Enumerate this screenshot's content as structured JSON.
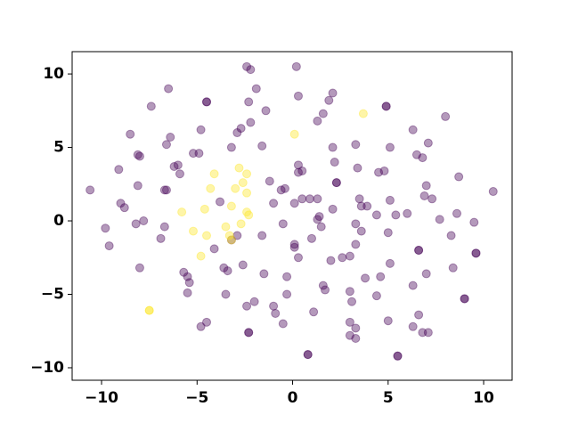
{
  "chart_data": {
    "type": "scatter",
    "xlim": [
      -11.54,
      11.49
    ],
    "ylim": [
      -10.85,
      11.52
    ],
    "xticks": [
      {
        "value": -10,
        "label": "−10"
      },
      {
        "value": -5,
        "label": "−5"
      },
      0,
      5,
      10
    ],
    "yticks": [
      {
        "value": -10,
        "label": "−10"
      },
      {
        "value": -5,
        "label": "−5"
      },
      0,
      5,
      10
    ],
    "grid": false,
    "series": [
      {
        "color": "#440154",
        "x": [
          -10.6,
          -9.8,
          -9.6,
          -9.1,
          -9.0,
          -8.8,
          -8.5,
          -8.1,
          -8.0,
          -8.1,
          -8.0,
          -7.8,
          -8.2,
          -7.4,
          -6.9,
          -6.7,
          -6.7,
          -6.6,
          -6.6,
          -6.5,
          -6.4,
          -6.2,
          -6.0,
          -5.9,
          -5.7,
          -5.5,
          -5.5,
          -5.4,
          -5.2,
          -4.9,
          -4.8,
          -4.8,
          -4.5,
          -4.5,
          -4.5,
          -4.1,
          -3.8,
          -3.6,
          -3.5,
          -3.4,
          -3.2,
          -3.2,
          -2.9,
          -2.9,
          -2.7,
          -2.6,
          -2.4,
          -2.2,
          -2.3,
          -2.2,
          -2.4,
          -2.3,
          -2.3,
          -2.0,
          -1.9,
          -1.6,
          -1.6,
          -1.5,
          -1.4,
          -1.2,
          -1.0,
          -1.0,
          -0.9,
          -0.6,
          -0.5,
          -0.5,
          -0.4,
          -0.3,
          -0.3,
          0.1,
          0.1,
          0.1,
          0.2,
          0.3,
          0.3,
          0.3,
          0.3,
          0.5,
          0.5,
          0.8,
          0.8,
          0.9,
          1.0,
          1.1,
          1.3,
          1.3,
          1.4,
          1.5,
          1.7,
          1.6,
          1.3,
          1.6,
          1.9,
          2.1,
          2.1,
          2.2,
          2.3,
          2.3,
          2.1,
          2.0,
          2.6,
          3.0,
          3.0,
          3.0,
          3.0,
          3.1,
          3.3,
          3.3,
          3.3,
          3.4,
          3.3,
          3.3,
          3.5,
          3.6,
          3.6,
          3.8,
          3.9,
          4.4,
          4.4,
          4.6,
          4.5,
          4.8,
          4.9,
          4.9,
          5.0,
          5.1,
          5.1,
          5.1,
          5.0,
          5.4,
          5.5,
          5.5,
          6.0,
          6.3,
          6.3,
          6.3,
          6.5,
          6.6,
          6.6,
          6.8,
          6.9,
          7.0,
          7.1,
          7.0,
          7.1,
          7.3,
          7.7,
          8.0,
          8.3,
          8.4,
          8.6,
          8.7,
          9.0,
          9.0,
          9.5,
          9.6,
          9.6,
          10.5,
          6.8,
          6.6
        ],
        "values": [
          2.1,
          -0.5,
          -1.7,
          3.5,
          1.2,
          0.9,
          5.9,
          4.5,
          4.4,
          2.4,
          -3.2,
          0.0,
          -0.2,
          7.8,
          -1.2,
          -0.4,
          2.1,
          2.1,
          5.2,
          9.0,
          5.7,
          3.7,
          3.8,
          3.2,
          -3.5,
          -3.8,
          -4.9,
          -4.2,
          4.6,
          4.6,
          6.2,
          -7.2,
          8.1,
          8.1,
          -6.9,
          -1.9,
          1.3,
          -3.2,
          -5.0,
          -3.4,
          -1.3,
          5.0,
          -1.0,
          6.0,
          6.3,
          -3.0,
          10.5,
          10.3,
          8.1,
          6.7,
          -5.8,
          -7.6,
          -7.6,
          -5.5,
          9.0,
          5.1,
          -1.0,
          -3.6,
          7.5,
          2.7,
          1.2,
          -5.8,
          -6.3,
          2.1,
          -0.2,
          -7.0,
          2.2,
          -3.8,
          -5.0,
          1.2,
          -1.6,
          -1.8,
          10.5,
          3.8,
          3.3,
          -2.5,
          8.5,
          3.4,
          1.5,
          -9.1,
          -9.1,
          1.5,
          -1.2,
          -6.2,
          0.1,
          1.5,
          0.3,
          -0.4,
          -4.7,
          -4.4,
          6.8,
          7.3,
          8.2,
          8.7,
          5.0,
          4.0,
          2.6,
          2.6,
          0.8,
          -2.7,
          -2.5,
          -2.4,
          -4.8,
          -6.9,
          -7.8,
          -5.5,
          -7.3,
          -8.0,
          5.2,
          3.6,
          -0.2,
          -1.6,
          1.5,
          -0.7,
          1.0,
          -3.9,
          1.0,
          0.4,
          -5.1,
          -3.8,
          3.3,
          3.4,
          7.8,
          7.8,
          -0.8,
          5.0,
          -2.9,
          1.4,
          -6.8,
          0.4,
          -9.2,
          -9.2,
          0.5,
          6.2,
          -4.4,
          -7.2,
          4.5,
          -2.0,
          -2.0,
          4.3,
          1.7,
          2.4,
          5.3,
          -3.6,
          -7.6,
          1.5,
          0.1,
          7.1,
          -1.0,
          -3.2,
          0.5,
          3.0,
          -5.3,
          -5.3,
          -0.1,
          -2.2,
          -2.2,
          2.0,
          -7.6,
          -6.4
        ]
      },
      {
        "color": "#fde725",
        "x": [
          0.1,
          3.7,
          -4.1,
          -4.3,
          -4.6,
          -5.8,
          -5.2,
          -4.5,
          -4.8,
          -3.3,
          -3.2,
          -3.5,
          -3.2,
          -2.8,
          -2.4,
          -2.6,
          -2.4,
          -3.0,
          -2.3,
          -2.7,
          -2.4,
          -7.5,
          -7.5
        ],
        "values": [
          5.9,
          7.3,
          3.2,
          2.2,
          0.8,
          0.6,
          -0.7,
          -1.0,
          -2.4,
          -1.0,
          -1.3,
          -0.4,
          1.0,
          3.6,
          3.2,
          2.6,
          1.9,
          2.2,
          0.4,
          -0.2,
          0.6,
          -6.1,
          -6.1
        ]
      }
    ]
  }
}
